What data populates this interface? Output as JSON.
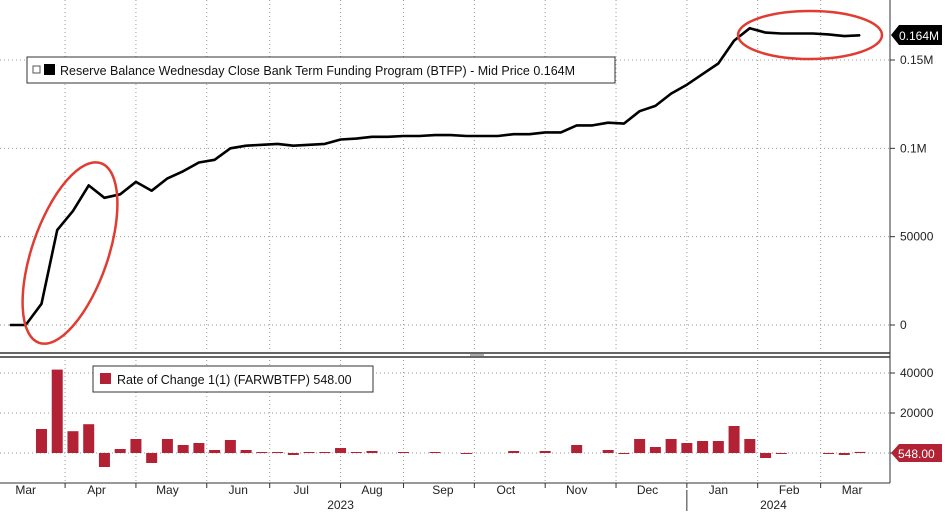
{
  "chart_data": [
    {
      "type": "line",
      "legend": "Reserve Balance Wednesday Close Bank Term Funding Program (BTFP) - Mid Price 0.164M",
      "last_value_label": "0.164M",
      "y_ticks": [
        {
          "value": 0,
          "label": "0"
        },
        {
          "value": 50000,
          "label": "50000"
        },
        {
          "value": 100000,
          "label": "0.1M"
        },
        {
          "value": 150000,
          "label": "0.15M"
        }
      ],
      "ylim": [
        0,
        170000
      ],
      "color": "#000000",
      "series": [
        {
          "x": [
            0,
            1,
            2,
            3,
            4,
            5,
            6,
            7,
            8,
            9,
            10,
            11,
            12,
            13,
            14,
            15,
            16,
            17,
            18,
            19,
            20,
            21,
            22,
            23,
            24,
            25,
            26,
            27,
            28,
            29,
            30,
            31,
            32,
            33,
            34,
            35,
            36,
            37,
            38,
            39,
            40,
            41,
            42,
            43,
            44,
            45,
            46,
            47,
            48,
            49,
            50,
            51,
            52,
            53,
            54
          ],
          "values": [
            0,
            0,
            12000,
            53700,
            64600,
            79000,
            72000,
            74000,
            81000,
            76000,
            83000,
            87000,
            92000,
            93500,
            100000,
            101500,
            102000,
            102500,
            101500,
            102000,
            102500,
            105000,
            105500,
            106500,
            106500,
            107000,
            107000,
            107500,
            107500,
            107000,
            107000,
            107000,
            108000,
            108000,
            109000,
            109000,
            113000,
            113000,
            114500,
            114000,
            121000,
            124000,
            131000,
            136000,
            142000,
            148000,
            161000,
            168000,
            165500,
            165000,
            165000,
            165000,
            164500,
            163500,
            164000
          ]
        }
      ]
    },
    {
      "type": "bar",
      "legend": "Rate of Change 1(1) (FARWBTFP) 548.00",
      "last_value_label": "548.00",
      "y_ticks": [
        {
          "value": 0,
          "label": ""
        },
        {
          "value": 20000,
          "label": "20000"
        },
        {
          "value": 40000,
          "label": "40000"
        }
      ],
      "ylim": [
        -10000,
        45000
      ],
      "color": "#b22234",
      "series": [
        {
          "x": [
            0,
            1,
            2,
            3,
            4,
            5,
            6,
            7,
            8,
            9,
            10,
            11,
            12,
            13,
            14,
            15,
            16,
            17,
            18,
            19,
            20,
            21,
            22,
            23,
            24,
            25,
            26,
            27,
            28,
            29,
            30,
            31,
            32,
            33,
            34,
            35,
            36,
            37,
            38,
            39,
            40,
            41,
            42,
            43,
            44,
            45,
            46,
            47,
            48,
            49,
            50,
            51,
            52,
            53,
            54
          ],
          "values": [
            0,
            0,
            12000,
            41700,
            10900,
            14400,
            -7000,
            2000,
            7000,
            -5000,
            7000,
            4000,
            5000,
            1500,
            6500,
            1500,
            500,
            500,
            -1000,
            500,
            500,
            2500,
            500,
            1000,
            0,
            500,
            0,
            500,
            0,
            -500,
            0,
            0,
            1000,
            0,
            1000,
            0,
            4000,
            0,
            1500,
            -500,
            7000,
            3000,
            7000,
            5000,
            6000,
            6000,
            13500,
            7000,
            -2500,
            -500,
            0,
            0,
            -500,
            -1000,
            548
          ]
        }
      ]
    }
  ],
  "x_axis": {
    "months": [
      {
        "label": "Mar",
        "x": 1
      },
      {
        "label": "Apr",
        "x": 5.5
      },
      {
        "label": "May",
        "x": 10
      },
      {
        "label": "Jun",
        "x": 14.5
      },
      {
        "label": "Jul",
        "x": 18.5
      },
      {
        "label": "Aug",
        "x": 23
      },
      {
        "label": "Sep",
        "x": 27.5
      },
      {
        "label": "Oct",
        "x": 31.5
      },
      {
        "label": "Nov",
        "x": 36
      },
      {
        "label": "Dec",
        "x": 40.5
      },
      {
        "label": "Jan",
        "x": 45
      },
      {
        "label": "Feb",
        "x": 49.5
      },
      {
        "label": "Mar",
        "x": 53.5
      }
    ],
    "years": [
      {
        "label": "2023",
        "x": 21
      },
      {
        "label": "2024",
        "x": 48.5
      }
    ],
    "gridlines": [
      3.5,
      8,
      12.5,
      16.5,
      21,
      25,
      29.5,
      34,
      38.5,
      43,
      47.5,
      51.5
    ]
  },
  "annotations": {
    "color": "#e03c31"
  }
}
